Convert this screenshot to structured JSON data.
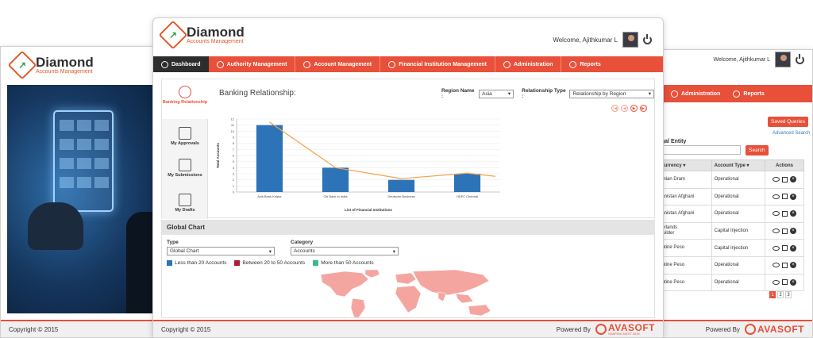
{
  "colors": {
    "accent": "#e8503a",
    "bar": "#2d73b8",
    "line": "#f5a04a",
    "map": "#f5a5a0",
    "dark_tab": "#2d2d2d"
  },
  "brand": {
    "name": "Diamond",
    "subtitle": "Accounts Management"
  },
  "left_window": {
    "copyright": "Copyright © 2015"
  },
  "main_window": {
    "welcome": "Welcome, Ajithkumar L",
    "nav": [
      {
        "label": "Dashboard",
        "icon": "home-icon"
      },
      {
        "label": "Authority Management",
        "icon": "user-icon"
      },
      {
        "label": "Account Management",
        "icon": "user-icon"
      },
      {
        "label": "Financial Institution Management",
        "icon": "bank-icon"
      },
      {
        "label": "Administration",
        "icon": "gear-icon"
      },
      {
        "label": "Reports",
        "icon": "chart-icon"
      }
    ],
    "sidebar": [
      {
        "label": "Banking Relationship"
      },
      {
        "label": "My Approvals"
      },
      {
        "label": "My Submissions"
      },
      {
        "label": "My Drafts"
      }
    ],
    "panel_title": "Banking Relationship:",
    "region_label": "Region Name :",
    "region_value": "Asia",
    "rel_type_label": "Relationship Type :",
    "rel_type_value": "Relationship by Region",
    "global_chart": {
      "title": "Global Chart",
      "type_label": "Type",
      "type_value": "Global Chart",
      "category_label": "Category",
      "category_value": "Accounts",
      "legend": [
        {
          "label": "Less than 20 Accounts",
          "color": "#2d73b8"
        },
        {
          "label": "Between 20 to 50 Accounts",
          "color": "#a82035"
        },
        {
          "label": "More than 50 Accounts",
          "color": "#3db88b"
        }
      ]
    },
    "copyright": "Copyright © 2015",
    "powered_by": "Powered By",
    "avasoft": "AVASOFT",
    "avasoft_tag": "SHAPING NEXT 2016"
  },
  "chart_data": {
    "type": "bar",
    "categories": [
      "Axis Bank Kolpur",
      "Citi Bank in India",
      "Deutsche Business",
      "HDFC Chennai"
    ],
    "series": [
      {
        "values": [
          11,
          4,
          2,
          3
        ]
      },
      {
        "values": [
          11.5,
          4,
          2.2,
          3.1
        ]
      }
    ],
    "xlabel": "List of Financial Institutions",
    "ylabel": "Total Accounts",
    "ylim": [
      0,
      12
    ],
    "yticks": [
      "0",
      "1",
      "2",
      "3",
      "4",
      "5",
      "6",
      "7",
      "8",
      "9",
      "10",
      "11",
      "12"
    ]
  },
  "right_window": {
    "welcome": "Welcome, Ajithkumar L",
    "nav": [
      {
        "label": "Administration"
      },
      {
        "label": "Reports"
      }
    ],
    "saved_queries": "Saved Queries",
    "advanced_search": "Advanced Search",
    "legal_entity_label": "egal Entity",
    "search_button": "Search",
    "columns": [
      "nt Currency ▾",
      "Account Type ▾",
      "Actions"
    ],
    "rows": [
      {
        "currency": "rmenian Dram",
        "type": "Operational"
      },
      {
        "currency": "fghanistan Afghani",
        "type": "Operational"
      },
      {
        "currency": "fghanistan Afghani",
        "type": "Operational"
      },
      {
        "currency": "etherlands\nn Guilder",
        "type": "Capital Injection"
      },
      {
        "currency": "rgentine Peso",
        "type": "Capital Injection"
      },
      {
        "currency": "rgentine Peso",
        "type": "Operational"
      },
      {
        "currency": "rgentine Peso",
        "type": "Operational"
      }
    ],
    "pages": [
      "1",
      "2",
      "3"
    ],
    "powered_by": "Powered By",
    "avasoft": "AVASOFT"
  }
}
